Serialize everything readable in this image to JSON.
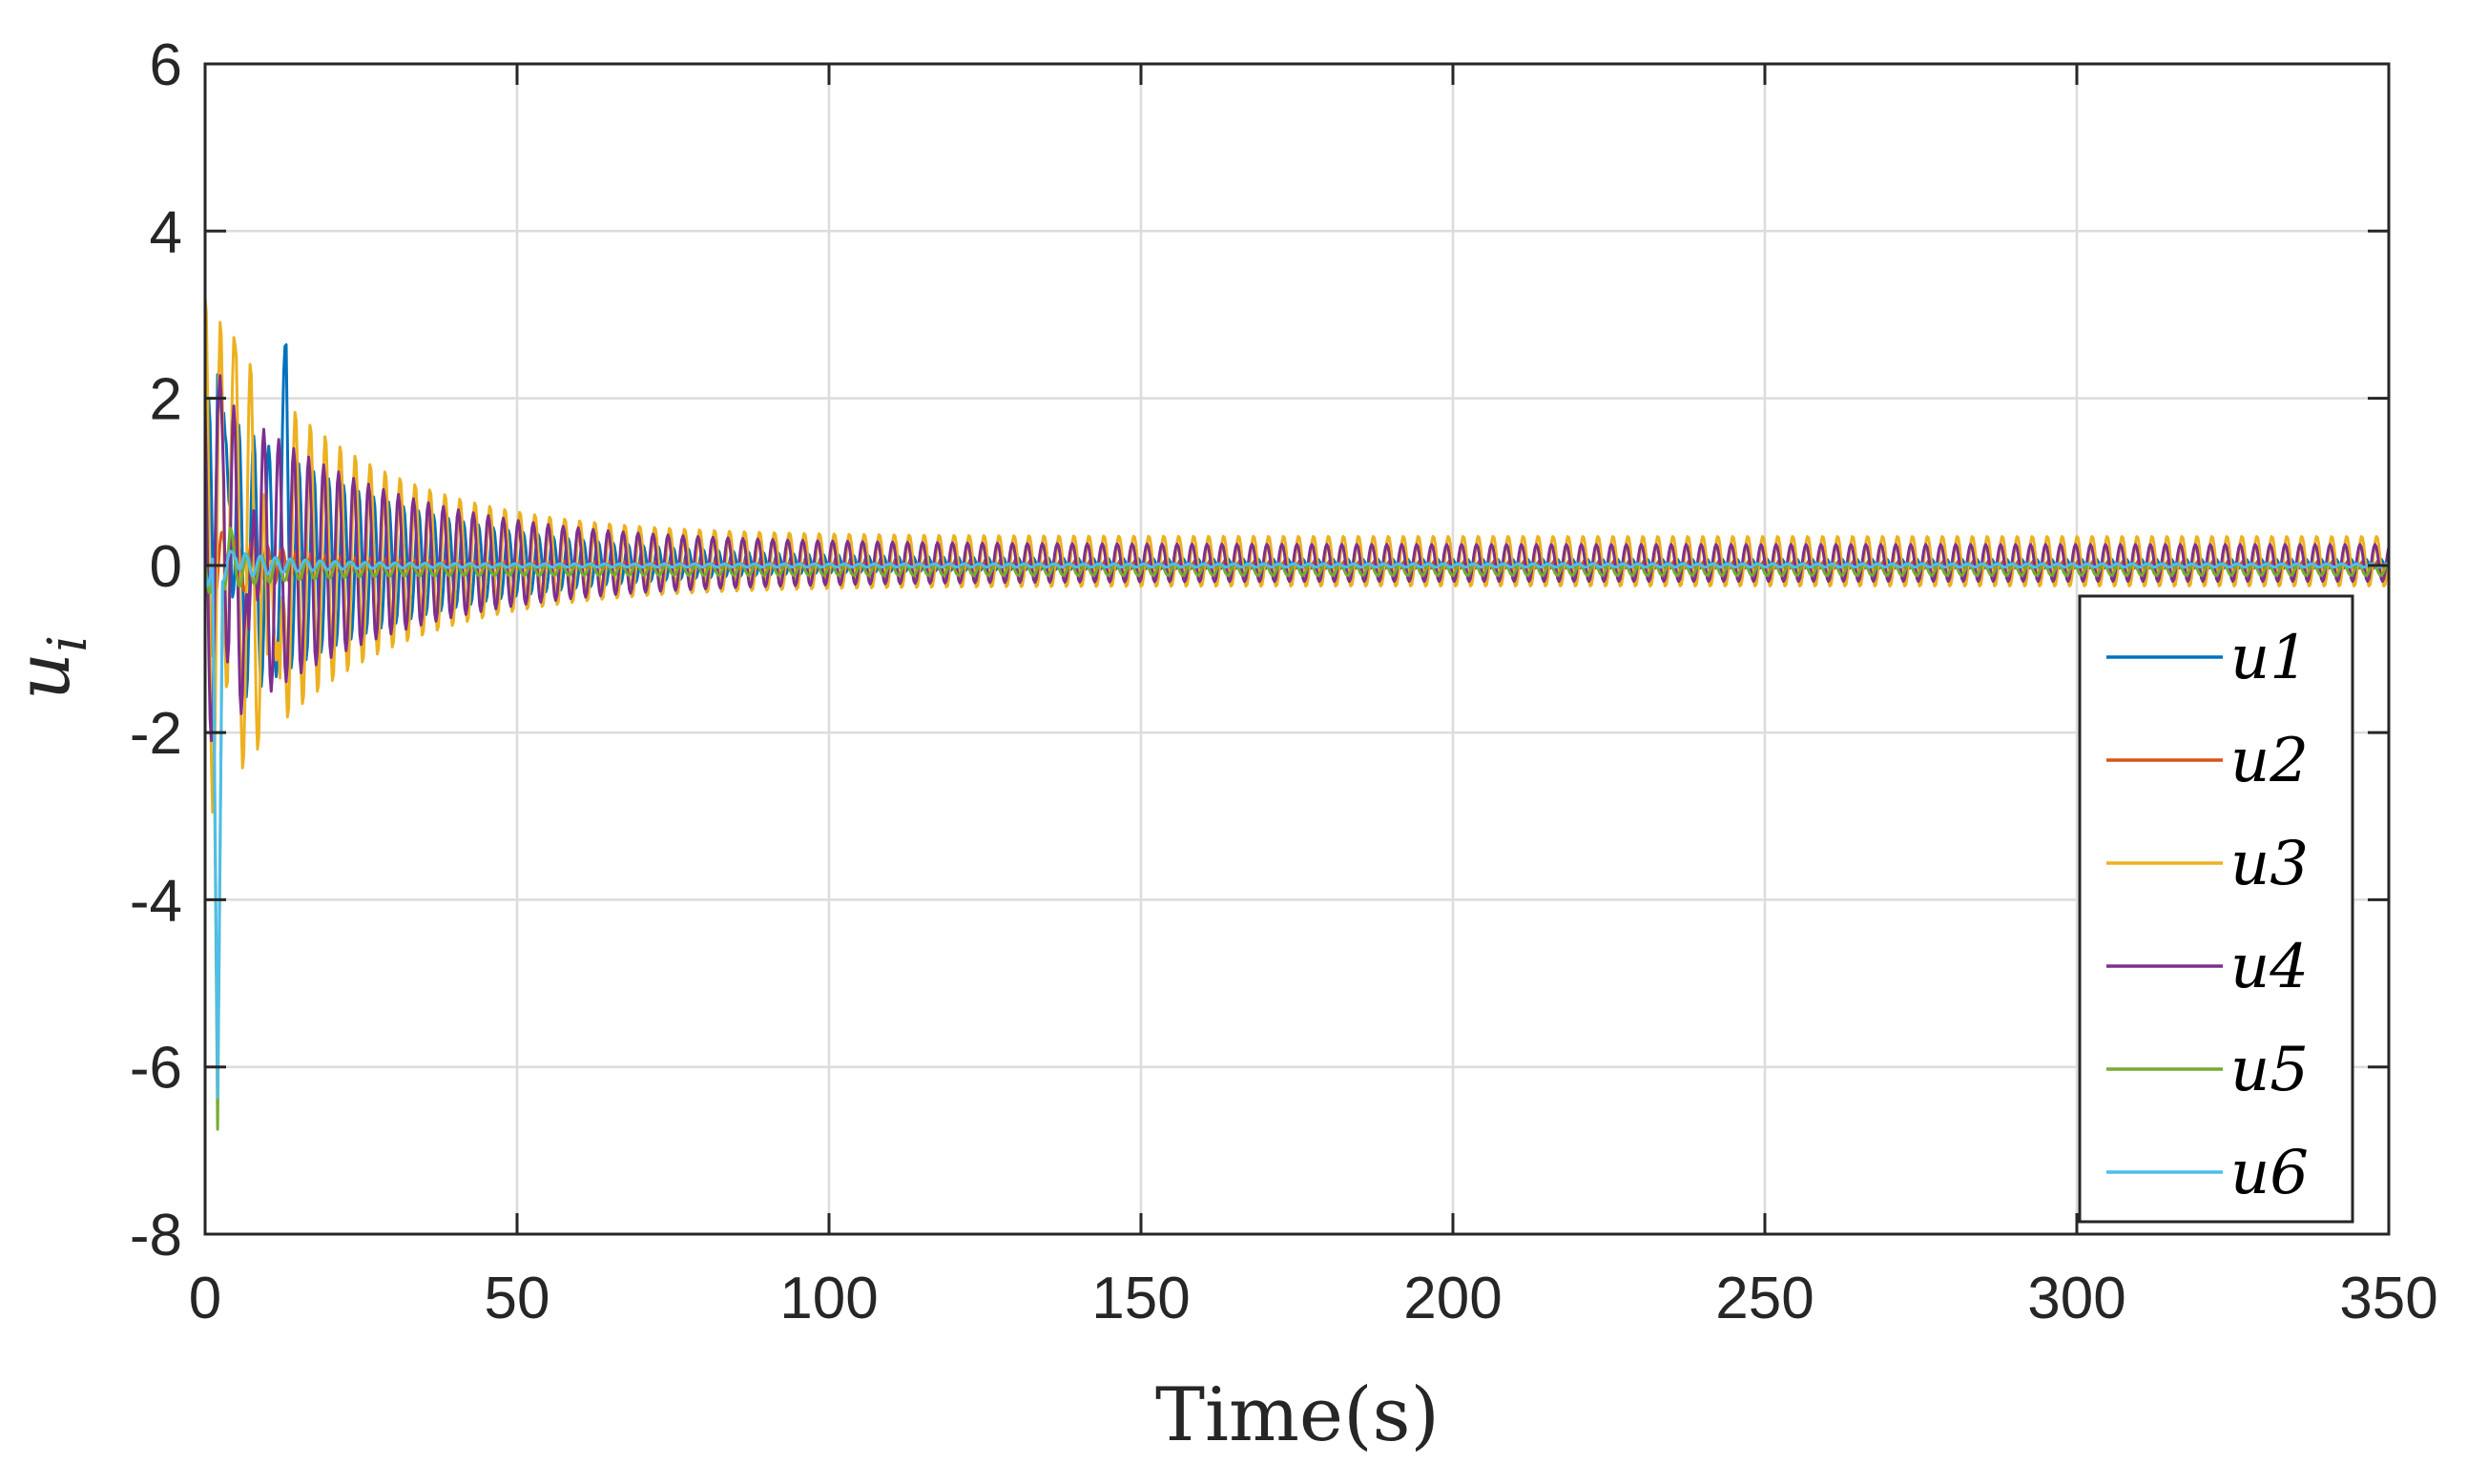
{
  "chart_data": {
    "type": "line",
    "title": "",
    "xlabel": "Time(s)",
    "ylabel_main": "u",
    "ylabel_sub": "i",
    "xlim": [
      0,
      350
    ],
    "ylim": [
      -8,
      6
    ],
    "xticks": [
      0,
      50,
      100,
      150,
      200,
      250,
      300,
      350
    ],
    "yticks": [
      -8,
      -6,
      -4,
      -2,
      0,
      2,
      4,
      6
    ],
    "grid": true,
    "legend_position": "bottom-right",
    "series": [
      {
        "name": "u1",
        "color": "#0072BD",
        "initial_peaks": [
          [
            2,
            3.9
          ],
          [
            4,
            2.2
          ],
          [
            13,
            2.0
          ]
        ],
        "amplitude_start": 2.0,
        "decay_time": 28,
        "steady_amplitude": 0.06,
        "offset": 0.02,
        "period": 2.4
      },
      {
        "name": "u2",
        "color": "#D95319",
        "initial_peaks": [
          [
            1,
            -1.0
          ],
          [
            4,
            0.55
          ]
        ],
        "amplitude_start": 0.5,
        "decay_time": 12,
        "steady_amplitude": 0.05,
        "offset": 0.0,
        "period": 2.4
      },
      {
        "name": "u3",
        "color": "#EDB120",
        "initial_peaks": [
          [
            4,
            2.6
          ],
          [
            10,
            -3.5
          ],
          [
            10.5,
            2.9
          ],
          [
            12,
            -3.3
          ]
        ],
        "amplitude_start": 3.2,
        "decay_time": 22,
        "steady_amplitude": 0.3,
        "offset": 0.05,
        "period": 2.4
      },
      {
        "name": "u4",
        "color": "#7E2F8E",
        "initial_peaks": [
          [
            3,
            2.0
          ],
          [
            7,
            -2.5
          ],
          [
            8,
            2.0
          ]
        ],
        "amplitude_start": 2.2,
        "decay_time": 26,
        "steady_amplitude": 0.22,
        "offset": 0.03,
        "period": 2.4
      },
      {
        "name": "u5",
        "color": "#77AC30",
        "initial_peaks": [
          [
            2,
            -7.0
          ],
          [
            4,
            0.3
          ]
        ],
        "amplitude_start": 0.3,
        "decay_time": 10,
        "steady_amplitude": 0.07,
        "offset": -0.05,
        "period": 2.4
      },
      {
        "name": "u6",
        "color": "#4DBEEE",
        "initial_peaks": [
          [
            2,
            -6.5
          ],
          [
            5,
            0.2
          ]
        ],
        "amplitude_start": 0.25,
        "decay_time": 10,
        "steady_amplitude": 0.02,
        "offset": 0.0,
        "period": 2.4
      }
    ]
  }
}
